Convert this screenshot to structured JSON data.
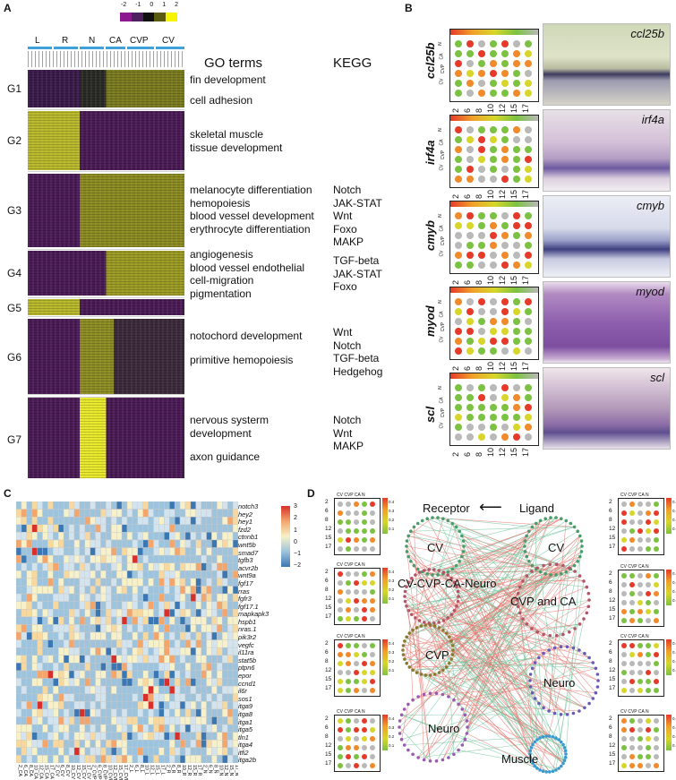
{
  "panels": {
    "a": "A",
    "b": "B",
    "c": "C",
    "d": "D"
  },
  "panelA": {
    "scale_ticks": [
      "-2",
      "-1",
      "0",
      "1",
      "2"
    ],
    "col_groups": [
      "L",
      "R",
      "N",
      "CA",
      "CVP",
      "CV"
    ],
    "headers": {
      "go": "GO terms",
      "kegg": "KEGG"
    },
    "groups": [
      {
        "name": "G1",
        "go": [
          "fin development",
          "",
          "cell adhesion"
        ],
        "kegg": []
      },
      {
        "name": "G2",
        "go": [
          "skeletal muscle",
          "tissue development"
        ],
        "kegg": []
      },
      {
        "name": "G3",
        "go": [
          "melanocyte differentiation",
          "hemopoiesis",
          "blood vessel development",
          "erythrocyte differentiation"
        ],
        "kegg": [
          "Notch",
          "JAK-STAT",
          "Wnt",
          "Foxo",
          "MAKP"
        ]
      },
      {
        "name": "G4",
        "go": [
          "angiogenesis",
          "blood vessel endothelial",
          "cell-migration",
          "pigmentation"
        ],
        "kegg": [
          "TGF-beta",
          "JAK-STAT",
          "Foxo"
        ]
      },
      {
        "name": "G5",
        "go": [],
        "kegg": []
      },
      {
        "name": "G6",
        "go": [
          "notochord development",
          "",
          "primitive hemopoiesis"
        ],
        "kegg": [
          "Wnt",
          "Notch",
          "TGF-beta",
          "Hedgehog"
        ]
      },
      {
        "name": "G7",
        "go": [
          "nervous systerm",
          "development",
          "",
          "axon guidance"
        ],
        "kegg": [
          "Notch",
          "Wnt",
          "MAKP"
        ]
      }
    ]
  },
  "panelB": {
    "genes": [
      "ccl25b",
      "irf4a",
      "cmyb",
      "myod",
      "scl"
    ],
    "x_ticks": [
      "2",
      "6",
      "8",
      "10",
      "12",
      "15",
      "17"
    ],
    "y_ticks": [
      "N",
      "CA",
      "CVP",
      "CV"
    ],
    "dot_colors": {
      "red": "#e53a2a",
      "orange": "#f08a2a",
      "yellow": "#d8d62a",
      "green": "#7cc242",
      "grey": "#b9b9b9"
    }
  },
  "panelC": {
    "rows": [
      "notch3",
      "hey2",
      "hey1",
      "fzd2",
      "ctnnb1",
      "wnt5b",
      "smad7",
      "tgfb3",
      "acvr2b",
      "wnt9a",
      "fgf17",
      "rras",
      "fgfr3",
      "fgf17.1",
      "mapkapk3",
      "hspb1",
      "nras.1",
      "pik3r2",
      "vegfc",
      "il11ra",
      "stat5b",
      "ptpn6",
      "epor",
      "ccnd1",
      "il6r",
      "sos1",
      "itga9",
      "itga8",
      "itga1",
      "itga5",
      "tln1",
      "itga4",
      "itfi2",
      "itga2b"
    ],
    "cols": [
      "2_CA",
      "6_CA",
      "8_CA",
      "10_CA",
      "12_CA",
      "15_CA",
      "17_CA",
      "2_CV",
      "6_CV",
      "8_CV",
      "10_CV",
      "12_CV",
      "15_CV",
      "17_CV",
      "2_CVP",
      "6_CVP",
      "8_CVP",
      "10_CVP",
      "12_CVP",
      "15_CVP",
      "17_CVP",
      "2_L",
      "6_L",
      "8_L",
      "10_L",
      "12_L",
      "15_L",
      "17_L",
      "2_R",
      "6_R",
      "8_R",
      "10_R",
      "12_R",
      "15_R",
      "17_R",
      "2_N",
      "6_N",
      "8_N",
      "10_N",
      "12_N",
      "15_N",
      "17_N"
    ],
    "scale_ticks": [
      "3",
      "2",
      "1",
      "0",
      "−1",
      "−2"
    ]
  },
  "panelD": {
    "receptor": "Receptor",
    "ligand": "Ligand",
    "arrow": "⟵",
    "nodes_left": [
      "CV",
      "CV-CVP-CA-Neuro",
      "CVP",
      "Neuro"
    ],
    "nodes_right": [
      "CV",
      "CVP and CA",
      "Neuro",
      "Muscle"
    ],
    "mini_ticks": [
      "2",
      "6",
      "8",
      "12",
      "15",
      "17"
    ],
    "mini_cols": "CV CVP CA N",
    "scale_ticks": [
      "0.4",
      "0.3",
      "0.2",
      "0.1"
    ],
    "edge_colors": {
      "red": "#e8706a",
      "green": "#6cc39a"
    }
  }
}
